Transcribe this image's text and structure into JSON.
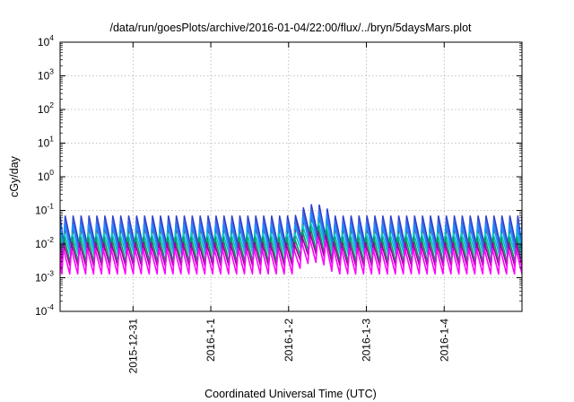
{
  "chart_data": {
    "type": "line",
    "title": "/data/run/goesPlots/archive/2016-01-04/22:00/flux/../bryn/5daysMars.plot",
    "xlabel": "Coordinated Universal Time (UTC)",
    "ylabel": "cGy/day",
    "yscale": "log",
    "ylim": [
      0.0001,
      10000
    ],
    "y_ticks": [
      {
        "base": "10",
        "exp": "-4"
      },
      {
        "base": "10",
        "exp": "-3"
      },
      {
        "base": "10",
        "exp": "-2"
      },
      {
        "base": "10",
        "exp": "-1"
      },
      {
        "base": "10",
        "exp": "0"
      },
      {
        "base": "10",
        "exp": "1"
      },
      {
        "base": "10",
        "exp": "2"
      },
      {
        "base": "10",
        "exp": "3"
      },
      {
        "base": "10",
        "exp": "4"
      }
    ],
    "xlim": [
      "2015-12-30T01:30",
      "2016-01-05T00:00"
    ],
    "x_ticks": [
      {
        "label": "2015-12-31",
        "t": "2015-12-31T00:00"
      },
      {
        "label": "2016-1-1",
        "t": "2016-01-01T00:00"
      },
      {
        "label": "2016-1-2",
        "t": "2016-01-02T00:00"
      },
      {
        "label": "2016-1-3",
        "t": "2016-01-03T00:00"
      },
      {
        "label": "2016-1-4",
        "t": "2016-01-04T00:00"
      }
    ],
    "grid": true,
    "cycle_hours": 2.45,
    "series": [
      {
        "color": "#cc0000",
        "peak": 0.055,
        "trough": 0.006
      },
      {
        "color": "#2a3fd0",
        "peak": 0.068,
        "trough": 0.0085
      },
      {
        "color": "#4169e1",
        "peak": 0.05,
        "trough": 0.006
      },
      {
        "color": "#1e90ff",
        "peak": 0.038,
        "trough": 0.0055
      },
      {
        "color": "#00c8c8",
        "peak": 0.022,
        "trough": 0.0045
      },
      {
        "color": "#00a060",
        "peak": 0.016,
        "trough": 0.0028
      },
      {
        "color": "#a000a0",
        "peak": 0.011,
        "trough": 0.0022
      },
      {
        "color": "#ff00ff",
        "peak": 0.0075,
        "trough": 0.0013
      }
    ],
    "enhancement": {
      "start": "2016-01-02T02:00",
      "end": "2016-01-02T14:00",
      "peak_factor": 2.2
    }
  }
}
